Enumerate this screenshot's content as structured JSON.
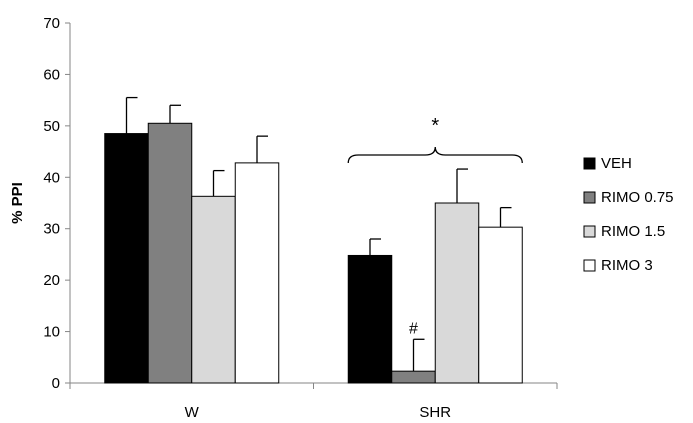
{
  "chart_data": {
    "type": "bar",
    "ylabel": "% PPI",
    "xlabel": "",
    "ylim": [
      0,
      70
    ],
    "yticks": [
      0,
      10,
      20,
      30,
      40,
      50,
      60,
      70
    ],
    "categories": [
      "W",
      "SHR"
    ],
    "series": [
      {
        "name": "VEH",
        "color": "#000000",
        "values": [
          48.5,
          24.8
        ],
        "errors": [
          7.0,
          3.2
        ]
      },
      {
        "name": "RIMO 0.75",
        "color": "#808080",
        "values": [
          50.5,
          2.3
        ],
        "errors": [
          3.5,
          6.2
        ]
      },
      {
        "name": "RIMO 1.5",
        "color": "#d9d9d9",
        "values": [
          36.3,
          35.0
        ],
        "errors": [
          5.0,
          6.6
        ]
      },
      {
        "name": "RIMO 3",
        "color": "#ffffff",
        "values": [
          42.8,
          30.3
        ],
        "errors": [
          5.2,
          3.8
        ]
      }
    ],
    "annotations": [
      {
        "text": "*",
        "category": "SHR",
        "note": "brace over all SHR groups"
      },
      {
        "text": "#",
        "category": "SHR",
        "series": "RIMO 0.75"
      }
    ],
    "legend": {
      "position": "right"
    },
    "grid": false
  }
}
